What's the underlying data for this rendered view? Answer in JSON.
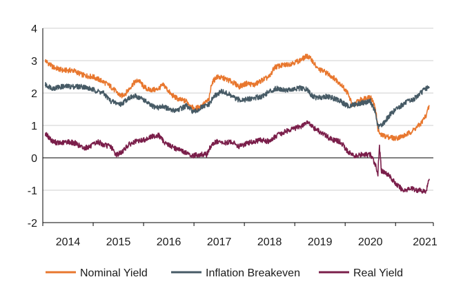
{
  "chart_data": {
    "type": "line",
    "ylim": [
      -2,
      4
    ],
    "yticks": [
      "-2",
      "-1",
      "0",
      "1",
      "2",
      "3",
      "4"
    ],
    "xticks": [
      "2014",
      "2015",
      "2016",
      "2017",
      "2018",
      "2019",
      "2020",
      "2021"
    ],
    "grid": "horizontal",
    "legend": "bottom",
    "series": [
      {
        "name": "Nominal Yield",
        "color": "#e8772e",
        "points": [
          [
            "2013.55",
            3.0
          ],
          [
            "2013.7",
            2.8
          ],
          [
            "2013.9",
            2.7
          ],
          [
            "2014.1",
            2.7
          ],
          [
            "2014.3",
            2.55
          ],
          [
            "2014.5",
            2.5
          ],
          [
            "2014.7",
            2.35
          ],
          [
            "2014.85",
            2.2
          ],
          [
            "2015.05",
            1.9
          ],
          [
            "2015.15",
            2.0
          ],
          [
            "2015.3",
            2.3
          ],
          [
            "2015.4",
            2.4
          ],
          [
            "2015.5",
            2.2
          ],
          [
            "2015.6",
            2.1
          ],
          [
            "2015.75",
            2.1
          ],
          [
            "2015.9",
            2.25
          ],
          [
            "2016.05",
            1.95
          ],
          [
            "2016.2",
            1.8
          ],
          [
            "2016.35",
            1.75
          ],
          [
            "2016.5",
            1.5
          ],
          [
            "2016.65",
            1.6
          ],
          [
            "2016.8",
            1.8
          ],
          [
            "2016.85",
            2.3
          ],
          [
            "2016.95",
            2.5
          ],
          [
            "2017.1",
            2.45
          ],
          [
            "2017.25",
            2.35
          ],
          [
            "2017.4",
            2.2
          ],
          [
            "2017.55",
            2.3
          ],
          [
            "2017.7",
            2.25
          ],
          [
            "2017.85",
            2.4
          ],
          [
            "2018.0",
            2.5
          ],
          [
            "2018.1",
            2.8
          ],
          [
            "2018.25",
            2.85
          ],
          [
            "2018.4",
            2.9
          ],
          [
            "2018.6",
            3.0
          ],
          [
            "2018.75",
            3.15
          ],
          [
            "2018.85",
            3.0
          ],
          [
            "2018.95",
            2.75
          ],
          [
            "2019.1",
            2.65
          ],
          [
            "2019.25",
            2.5
          ],
          [
            "2019.4",
            2.3
          ],
          [
            "2019.55",
            2.0
          ],
          [
            "2019.65",
            1.6
          ],
          [
            "2019.75",
            1.75
          ],
          [
            "2019.9",
            1.85
          ],
          [
            "2020.0",
            1.9
          ],
          [
            "2020.1",
            1.55
          ],
          [
            "2020.15",
            0.9
          ],
          [
            "2020.2",
            0.7
          ],
          [
            "2020.35",
            0.65
          ],
          [
            "2020.5",
            0.6
          ],
          [
            "2020.7",
            0.7
          ],
          [
            "2020.85",
            0.85
          ],
          [
            "2021.0",
            1.05
          ],
          [
            "2021.1",
            1.3
          ],
          [
            "2021.17",
            1.6
          ]
        ]
      },
      {
        "name": "Inflation Breakeven",
        "color": "#465a65",
        "points": [
          [
            "2013.55",
            2.25
          ],
          [
            "2013.7",
            2.15
          ],
          [
            "2013.9",
            2.2
          ],
          [
            "2014.1",
            2.2
          ],
          [
            "2014.3",
            2.2
          ],
          [
            "2014.5",
            2.1
          ],
          [
            "2014.7",
            2.0
          ],
          [
            "2014.85",
            1.75
          ],
          [
            "2015.05",
            1.65
          ],
          [
            "2015.2",
            1.85
          ],
          [
            "2015.35",
            1.9
          ],
          [
            "2015.5",
            1.8
          ],
          [
            "2015.65",
            1.6
          ],
          [
            "2015.8",
            1.55
          ],
          [
            "2015.9",
            1.6
          ],
          [
            "2016.05",
            1.45
          ],
          [
            "2016.2",
            1.5
          ],
          [
            "2016.35",
            1.6
          ],
          [
            "2016.5",
            1.4
          ],
          [
            "2016.65",
            1.55
          ],
          [
            "2016.8",
            1.65
          ],
          [
            "2016.9",
            1.9
          ],
          [
            "2017.05",
            2.05
          ],
          [
            "2017.2",
            1.95
          ],
          [
            "2017.35",
            1.8
          ],
          [
            "2017.55",
            1.8
          ],
          [
            "2017.7",
            1.85
          ],
          [
            "2017.85",
            1.9
          ],
          [
            "2018.0",
            2.05
          ],
          [
            "2018.15",
            2.15
          ],
          [
            "2018.3",
            2.1
          ],
          [
            "2018.45",
            2.1
          ],
          [
            "2018.6",
            2.15
          ],
          [
            "2018.75",
            2.1
          ],
          [
            "2018.85",
            1.9
          ],
          [
            "2018.95",
            1.85
          ],
          [
            "2019.1",
            1.9
          ],
          [
            "2019.25",
            1.85
          ],
          [
            "2019.4",
            1.75
          ],
          [
            "2019.55",
            1.6
          ],
          [
            "2019.7",
            1.65
          ],
          [
            "2019.85",
            1.7
          ],
          [
            "2020.0",
            1.75
          ],
          [
            "2020.1",
            1.4
          ],
          [
            "2020.15",
            0.95
          ],
          [
            "2020.25",
            1.05
          ],
          [
            "2020.4",
            1.35
          ],
          [
            "2020.55",
            1.55
          ],
          [
            "2020.7",
            1.7
          ],
          [
            "2020.85",
            1.8
          ],
          [
            "2021.0",
            2.0
          ],
          [
            "2021.1",
            2.15
          ],
          [
            "2021.17",
            2.15
          ]
        ]
      },
      {
        "name": "Real Yield",
        "color": "#7a1e4a",
        "points": [
          [
            "2013.55",
            0.75
          ],
          [
            "2013.7",
            0.5
          ],
          [
            "2013.85",
            0.45
          ],
          [
            "2014.0",
            0.5
          ],
          [
            "2014.15",
            0.45
          ],
          [
            "2014.3",
            0.3
          ],
          [
            "2014.45",
            0.35
          ],
          [
            "2014.6",
            0.5
          ],
          [
            "2014.7",
            0.4
          ],
          [
            "2014.85",
            0.35
          ],
          [
            "2014.95",
            0.1
          ],
          [
            "2015.05",
            0.15
          ],
          [
            "2015.2",
            0.4
          ],
          [
            "2015.35",
            0.5
          ],
          [
            "2015.5",
            0.55
          ],
          [
            "2015.65",
            0.65
          ],
          [
            "2015.8",
            0.7
          ],
          [
            "2015.9",
            0.5
          ],
          [
            "2016.05",
            0.35
          ],
          [
            "2016.2",
            0.25
          ],
          [
            "2016.35",
            0.15
          ],
          [
            "2016.45",
            0.05
          ],
          [
            "2016.6",
            0.1
          ],
          [
            "2016.75",
            0.1
          ],
          [
            "2016.85",
            0.4
          ],
          [
            "2016.95",
            0.5
          ],
          [
            "2017.1",
            0.45
          ],
          [
            "2017.25",
            0.5
          ],
          [
            "2017.4",
            0.35
          ],
          [
            "2017.55",
            0.45
          ],
          [
            "2017.7",
            0.5
          ],
          [
            "2017.85",
            0.55
          ],
          [
            "2018.0",
            0.5
          ],
          [
            "2018.15",
            0.7
          ],
          [
            "2018.3",
            0.8
          ],
          [
            "2018.45",
            0.9
          ],
          [
            "2018.6",
            0.95
          ],
          [
            "2018.75",
            1.1
          ],
          [
            "2018.85",
            0.95
          ],
          [
            "2018.95",
            0.85
          ],
          [
            "2019.1",
            0.7
          ],
          [
            "2019.25",
            0.55
          ],
          [
            "2019.4",
            0.5
          ],
          [
            "2019.55",
            0.2
          ],
          [
            "2019.7",
            0.05
          ],
          [
            "2019.85",
            0.1
          ],
          [
            "2020.0",
            0.1
          ],
          [
            "2020.1",
            -0.2
          ],
          [
            "2020.15",
            -0.5
          ],
          [
            "2020.18",
            0.35
          ],
          [
            "2020.22",
            -0.4
          ],
          [
            "2020.35",
            -0.5
          ],
          [
            "2020.5",
            -0.8
          ],
          [
            "2020.65",
            -1.0
          ],
          [
            "2020.8",
            -0.95
          ],
          [
            "2020.95",
            -1.0
          ],
          [
            "2021.1",
            -1.05
          ],
          [
            "2021.15",
            -0.75
          ],
          [
            "2021.17",
            -0.65
          ]
        ]
      }
    ]
  }
}
